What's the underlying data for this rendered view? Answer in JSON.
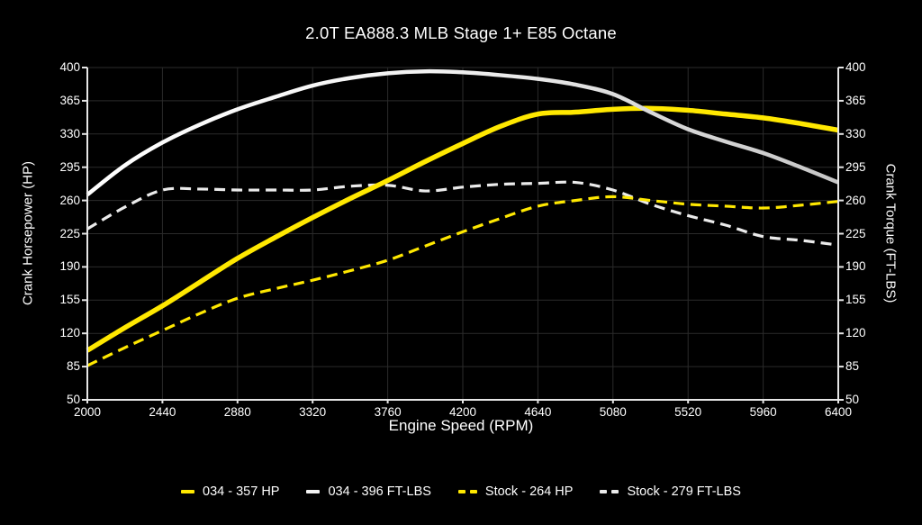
{
  "chart_data": {
    "type": "line",
    "title": "2.0T EA888.3 MLB Stage 1+ E85 Octane",
    "xlabel": "Engine Speed (RPM)",
    "ylabel_left": "Crank Horsepower (HP)",
    "ylabel_right": "Crank Torque (FT-LBS)",
    "xlim": [
      2000,
      6400
    ],
    "ylim": [
      50,
      400
    ],
    "xticks": [
      2000,
      2440,
      2880,
      3320,
      3760,
      4200,
      4640,
      5080,
      5520,
      5960,
      6400
    ],
    "yticks": [
      50,
      85,
      120,
      155,
      190,
      225,
      260,
      295,
      330,
      365,
      400
    ],
    "grid": true,
    "legend_position": "bottom",
    "x_rpm": [
      2000,
      2220,
      2440,
      2660,
      2880,
      3100,
      3320,
      3540,
      3760,
      3980,
      4200,
      4420,
      4640,
      4860,
      5080,
      5300,
      5520,
      5740,
      5960,
      6180,
      6400
    ],
    "series": [
      {
        "name": "tuned_hp",
        "label": "034 - 357 HP",
        "axis": "left",
        "line_style": "solid",
        "color": "#ffe800",
        "values": [
          102,
          126,
          149,
          174,
          199,
          221,
          242,
          262,
          281,
          301,
          320,
          338,
          351,
          353,
          356,
          357,
          355,
          351,
          347,
          341,
          334
        ]
      },
      {
        "name": "tuned_tq",
        "label": "034 - 396 FT-LBS",
        "axis": "right",
        "line_style": "solid",
        "color": "#f2f2f2",
        "values": [
          266,
          297,
          321,
          340,
          356,
          369,
          381,
          389,
          394,
          396,
          395,
          392,
          388,
          382,
          372,
          353,
          335,
          322,
          310,
          295,
          279
        ]
      },
      {
        "name": "stock_hp",
        "label": "Stock - 264 HP",
        "axis": "left",
        "line_style": "dashed",
        "color": "#ffe800",
        "values": [
          86,
          105,
          123,
          141,
          157,
          167,
          176,
          186,
          197,
          212,
          227,
          241,
          254,
          260,
          264,
          260,
          256,
          254,
          252,
          255,
          259
        ]
      },
      {
        "name": "stock_tq",
        "label": "Stock - 279 FT-LBS",
        "axis": "right",
        "line_style": "dashed",
        "color": "#ebebeb",
        "values": [
          230,
          253,
          271,
          272,
          271,
          271,
          271,
          275,
          276,
          270,
          274,
          277,
          278,
          279,
          271,
          256,
          244,
          234,
          222,
          218,
          213
        ]
      }
    ],
    "colors": {
      "background": "#000000",
      "grid": "#2b2b2b",
      "axis": "#e6e6e6",
      "text": "#ffffff"
    }
  }
}
